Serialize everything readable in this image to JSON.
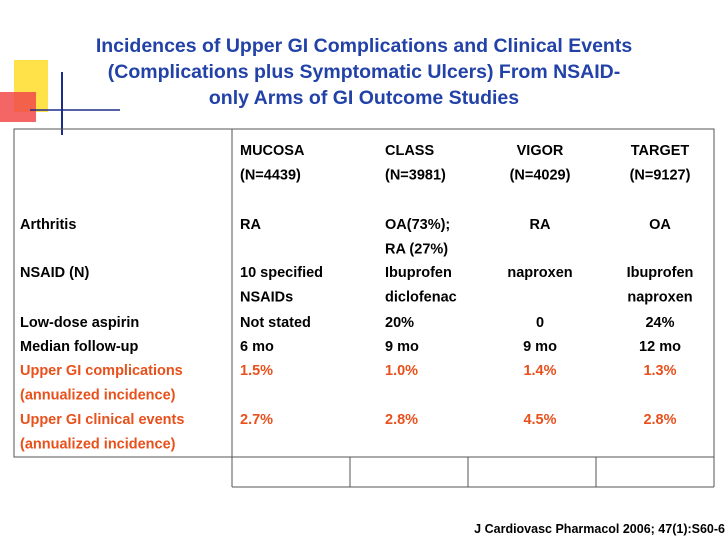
{
  "header": {
    "title": [
      "Incidences of Upper GI Complications and Clinical Events",
      "(Complications plus Symptomatic Ulcers) From NSAID-",
      "only Arms of GI Outcome Studies"
    ]
  },
  "table": {
    "columns": [
      [
        "MUCOSA",
        "(N=4439)"
      ],
      [
        "CLASS",
        "(N=3981)"
      ],
      [
        "VIGOR",
        "(N=4029)"
      ],
      [
        "TARGET",
        "(N=9127)"
      ]
    ],
    "rows": [
      {
        "label": [
          "Arthritis"
        ],
        "cells": [
          [
            "RA"
          ],
          [
            "OA(73%);",
            "RA (27%)"
          ],
          [
            "RA"
          ],
          [
            "OA"
          ]
        ]
      },
      {
        "label": [
          "NSAID (N)"
        ],
        "cells": [
          [
            "10 specified",
            "NSAIDs"
          ],
          [
            "Ibuprofen",
            "diclofenac"
          ],
          [
            "naproxen"
          ],
          [
            "Ibuprofen",
            "naproxen"
          ]
        ]
      },
      {
        "label": [
          "Low-dose aspirin"
        ],
        "cells": [
          [
            "Not stated"
          ],
          [
            "20%"
          ],
          [
            "0"
          ],
          [
            "24%"
          ]
        ]
      },
      {
        "label": [
          "Median follow-up"
        ],
        "cells": [
          [
            "6 mo"
          ],
          [
            "9 mo"
          ],
          [
            "9 mo"
          ],
          [
            "12 mo"
          ]
        ]
      },
      {
        "label": [
          "Upper GI complications",
          "(annualized incidence)"
        ],
        "cells": [
          [
            "1.5%"
          ],
          [
            "1.0%"
          ],
          [
            "1.4%"
          ],
          [
            "1.3%"
          ]
        ],
        "highlight": true
      },
      {
        "label": [
          "Upper GI clinical events",
          "(annualized incidence)"
        ],
        "cells": [
          [
            "2.7%"
          ],
          [
            "2.8%"
          ],
          [
            "4.5%"
          ],
          [
            "2.8%"
          ]
        ],
        "highlight": true
      }
    ]
  },
  "footer": {
    "citation": "J Cardiovasc Pharmacol 2006; 47(1):S60-6"
  }
}
